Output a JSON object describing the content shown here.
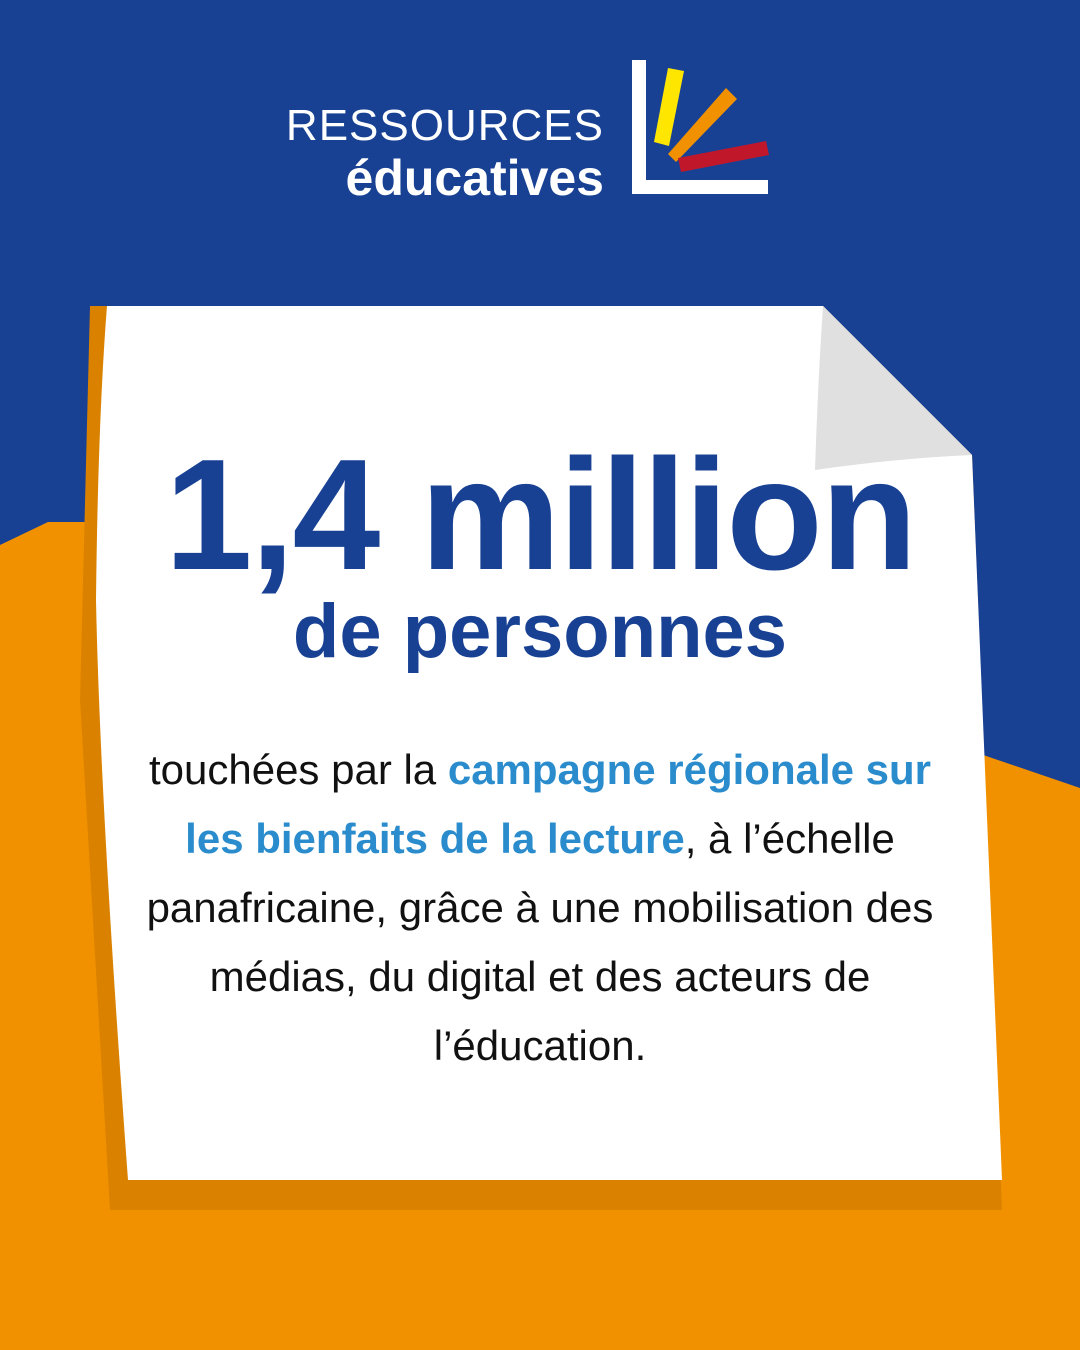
{
  "brand": {
    "line1": "RESSOURCES",
    "line2": "éducatives"
  },
  "colors": {
    "blue": "#184194",
    "orange": "#F29100",
    "highlight": "#2A8CCC",
    "logo_yellow": "#FFE600",
    "logo_orange": "#F29100",
    "logo_red": "#C0182A"
  },
  "headline": {
    "number": "1,4 million",
    "subtitle": "de personnes"
  },
  "body": {
    "part1": "touchées par la ",
    "highlight": "campagne régionale sur les bienfaits de la lecture",
    "part2": ", à l’échelle panafricaine, grâce à une mobilisation des médias, du digital et des acteurs de l’éducation."
  }
}
